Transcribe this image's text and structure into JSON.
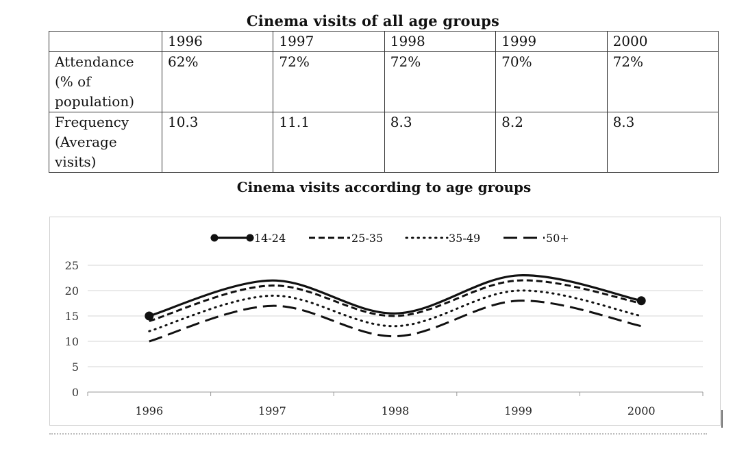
{
  "table": {
    "title": "Cinema visits of all age groups",
    "years": [
      "1996",
      "1997",
      "1998",
      "1999",
      "2000"
    ],
    "rows": [
      {
        "label_lines": [
          "Attendance",
          "(% of",
          "population)"
        ],
        "values": [
          "62%",
          "72%",
          "72%",
          "70%",
          "72%"
        ]
      },
      {
        "label_lines": [
          "Frequency",
          "(Average",
          "visits)"
        ],
        "values": [
          "10.3",
          "11.1",
          "8.3",
          "8.2",
          "8.3"
        ]
      }
    ]
  },
  "chart_data": {
    "type": "line",
    "title": "Cinema visits according to age groups",
    "x": [
      "1996",
      "1997",
      "1998",
      "1999",
      "2000"
    ],
    "ylim": [
      0,
      25
    ],
    "yticks": [
      "0",
      "5",
      "10",
      "15",
      "20",
      "25"
    ],
    "grid": true,
    "legend_position": "top",
    "series": [
      {
        "name": "14-24",
        "values": [
          15,
          22,
          15.5,
          23,
          18
        ],
        "style": "solid-markers"
      },
      {
        "name": "25-35",
        "values": [
          14,
          21,
          15,
          22,
          17.5
        ],
        "style": "dashed"
      },
      {
        "name": "35-49",
        "values": [
          12,
          19,
          13,
          20,
          15
        ],
        "style": "dotted"
      },
      {
        "name": "50+",
        "values": [
          10,
          17,
          11,
          18,
          13
        ],
        "style": "long-dash"
      }
    ]
  }
}
